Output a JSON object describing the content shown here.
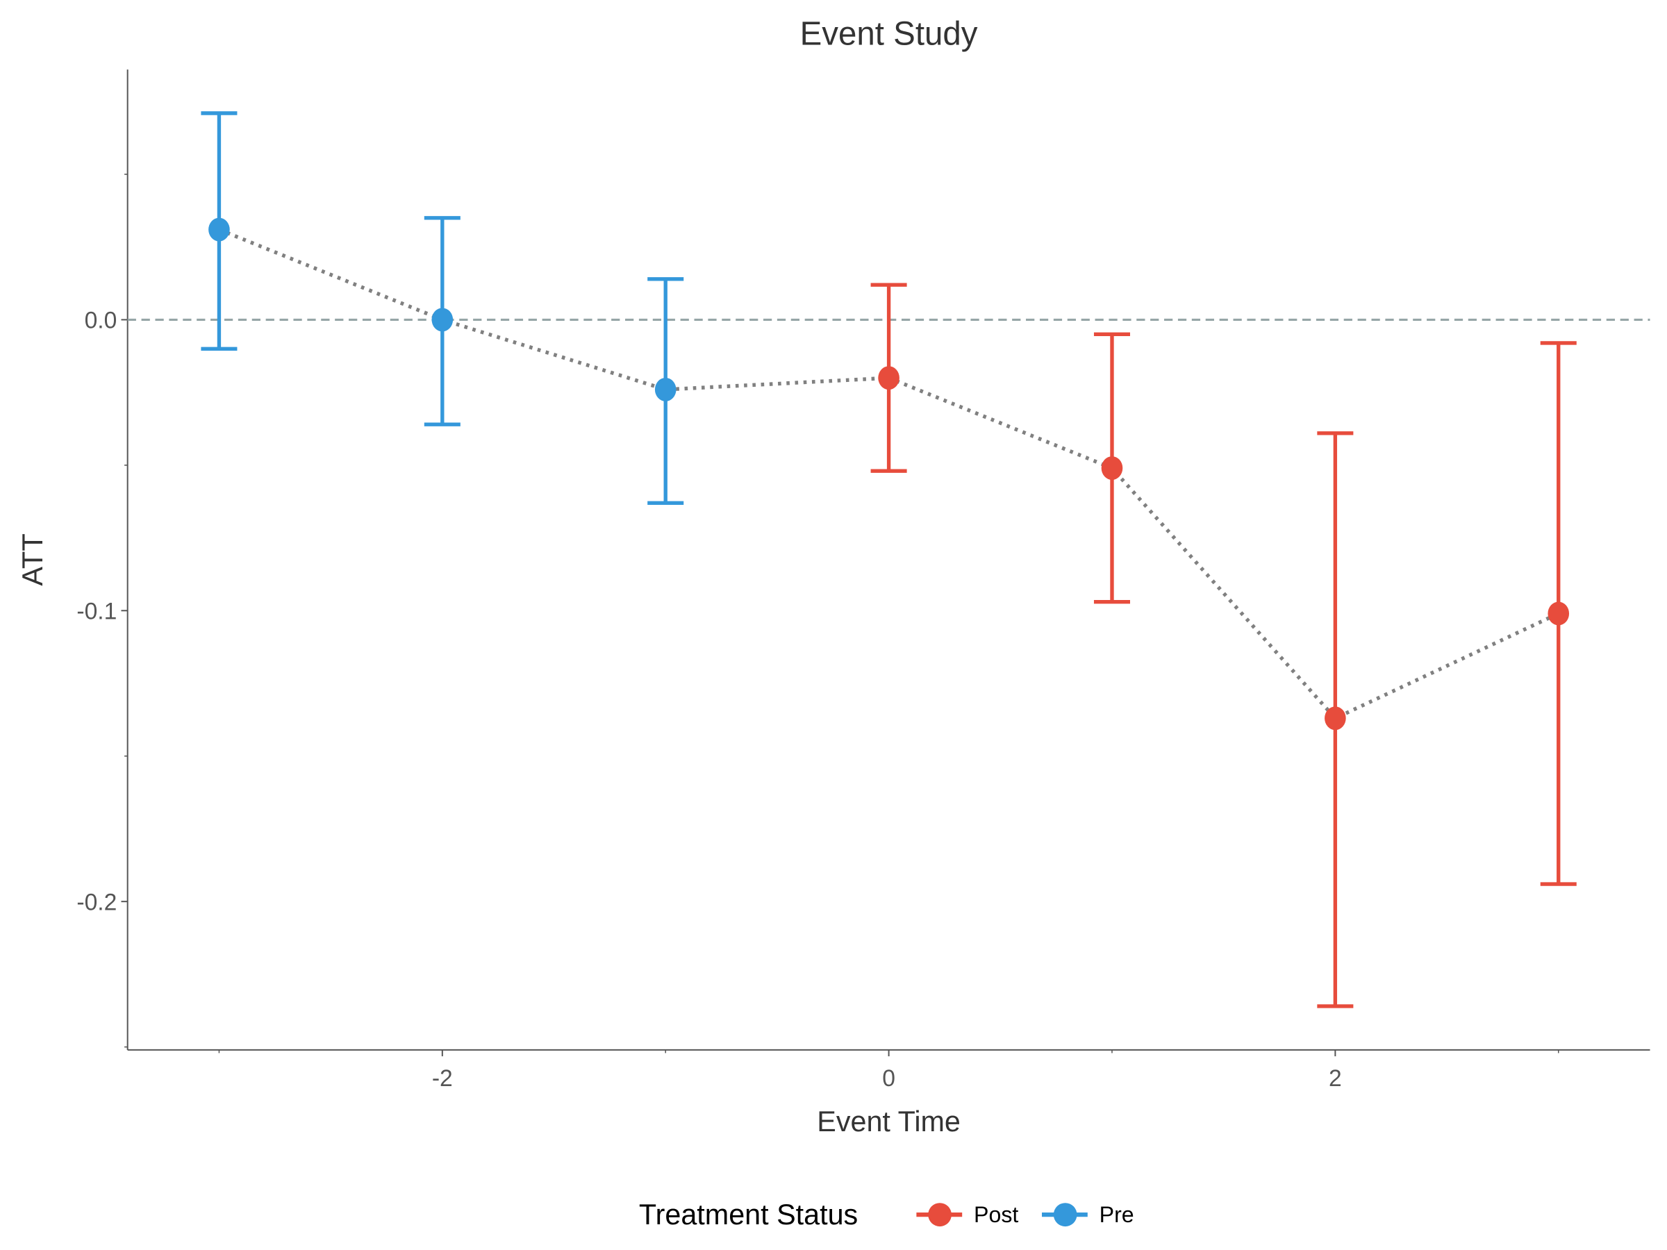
{
  "chart_data": {
    "type": "line",
    "title": "Event Study",
    "xlabel": "Event Time",
    "ylabel": "ATT",
    "xlim": [
      -3.41,
      3.41
    ],
    "ylim": [
      -0.251,
      0.086
    ],
    "x_ticks": [
      -2,
      0,
      2
    ],
    "x_tick_labels": [
      "-2",
      "0",
      "2"
    ],
    "x_minor_ticks": [
      -3,
      -1,
      1,
      3
    ],
    "y_ticks": [
      0.0,
      -0.1,
      -0.2
    ],
    "y_tick_labels": [
      "0.0",
      "-0.1",
      "-0.2"
    ],
    "y_minor_ticks": [
      0.05,
      -0.05,
      -0.15,
      -0.25
    ],
    "grid": false,
    "reference_line": {
      "y": 0,
      "style": "dashed",
      "color": "#95a5a6"
    },
    "connector": {
      "style": "dotted",
      "color": "#808080"
    },
    "legend": {
      "title": "Treatment Status",
      "placement": "bottom",
      "entries": [
        {
          "label": "Post",
          "color": "#e74c3c"
        },
        {
          "label": "Pre",
          "color": "#3498db"
        }
      ]
    },
    "points": [
      {
        "x": -3,
        "att": 0.031,
        "ci_low": -0.01,
        "ci_high": 0.071,
        "status": "Pre"
      },
      {
        "x": -2,
        "att": 0.0,
        "ci_low": -0.036,
        "ci_high": 0.035,
        "status": "Pre"
      },
      {
        "x": -1,
        "att": -0.024,
        "ci_low": -0.063,
        "ci_high": 0.014,
        "status": "Pre"
      },
      {
        "x": 0,
        "att": -0.02,
        "ci_low": -0.052,
        "ci_high": 0.012,
        "status": "Post"
      },
      {
        "x": 1,
        "att": -0.051,
        "ci_low": -0.097,
        "ci_high": -0.005,
        "status": "Post"
      },
      {
        "x": 2,
        "att": -0.137,
        "ci_low": -0.236,
        "ci_high": -0.039,
        "status": "Post"
      },
      {
        "x": 3,
        "att": -0.101,
        "ci_low": -0.194,
        "ci_high": -0.008,
        "status": "Post"
      }
    ]
  }
}
